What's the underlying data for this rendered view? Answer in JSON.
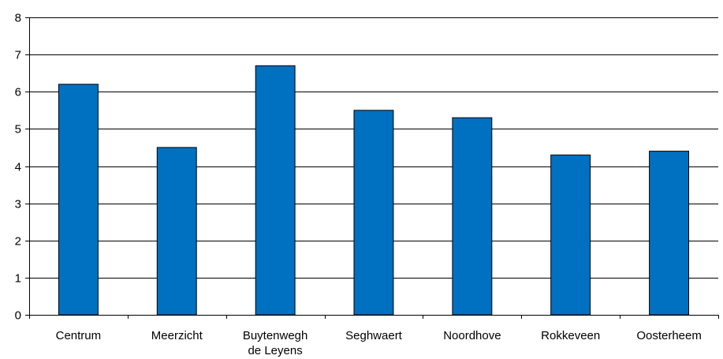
{
  "chart_data": {
    "type": "bar",
    "categories": [
      [
        "Centrum"
      ],
      [
        "Meerzicht"
      ],
      [
        "Buytenwegh",
        "de Leyens"
      ],
      [
        "Seghwaert"
      ],
      [
        "Noordhove"
      ],
      [
        "Rokkeveen"
      ],
      [
        "Oosterheem"
      ]
    ],
    "values": [
      6.2,
      4.5,
      6.7,
      5.5,
      5.3,
      4.3,
      4.4
    ],
    "yticks": [
      0,
      1,
      2,
      3,
      4,
      5,
      6,
      7,
      8
    ],
    "ylim": [
      0,
      8
    ],
    "grid": true,
    "legend": "none",
    "title": "",
    "xlabel": "",
    "ylabel": "",
    "colors": {
      "bar": "#0070C0",
      "bar_outline": "#000000",
      "grid": "#000000",
      "axis": "#000000"
    }
  }
}
